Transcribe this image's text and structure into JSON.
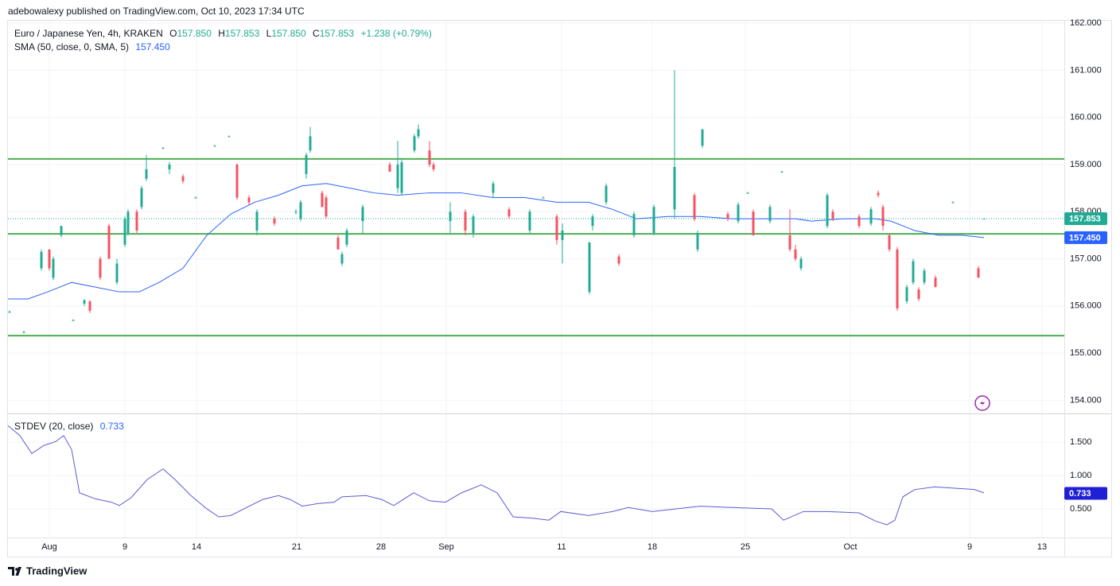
{
  "header": {
    "published": "adebowalexy published on TradingView.com, Oct 10, 2023 17:34 UTC"
  },
  "footer": "TradingView",
  "chart_data": {
    "type": "candlestick",
    "legend": {
      "title": "Euro / Japanese Yen, 4h, KRAKEN",
      "ohlc": [
        {
          "key": "O",
          "value": "157.850"
        },
        {
          "key": "H",
          "value": "157.853"
        },
        {
          "key": "L",
          "value": "157.850"
        },
        {
          "key": "C",
          "value": "157.853"
        }
      ],
      "change": "+1.238 (+0.79%)",
      "sma_name": "SMA (50, close, 0, SMA, 5)",
      "stdev_name": "STDEV (20, close)"
    },
    "up_color": "#22ab94",
    "down_color": "#f7525f",
    "grid": true,
    "xlim": [
      0,
      1328
    ],
    "xticks": [
      {
        "value": 52,
        "label": "Aug"
      },
      {
        "value": 147,
        "label": "9"
      },
      {
        "value": 237,
        "label": "14"
      },
      {
        "value": 363,
        "label": "21"
      },
      {
        "value": 469,
        "label": "28"
      },
      {
        "value": 551,
        "label": "Sep"
      },
      {
        "value": 696,
        "label": "11"
      },
      {
        "value": 810,
        "label": "18"
      },
      {
        "value": 927,
        "label": "25"
      },
      {
        "value": 1059,
        "label": "Oct"
      },
      {
        "value": 1209,
        "label": "9"
      },
      {
        "value": 1300,
        "label": "13"
      }
    ],
    "ylim": [
      153.72,
      162.07
    ],
    "yticks": [
      {
        "value": 162,
        "label": "162.000"
      },
      {
        "value": 161,
        "label": "161.000"
      },
      {
        "value": 160,
        "label": "160.000"
      },
      {
        "value": 159,
        "label": "159.000"
      },
      {
        "value": 158,
        "label": "158.000"
      },
      {
        "value": 157,
        "label": "157.000"
      },
      {
        "value": 156,
        "label": "156.000"
      },
      {
        "value": 155,
        "label": "155.000"
      },
      {
        "value": 154,
        "label": "154.000"
      }
    ],
    "y2lim": [
      0.07,
      1.92
    ],
    "y2ticks": [
      {
        "value": 1.5,
        "label": "1.500"
      },
      {
        "value": 1.0,
        "label": "1.000"
      },
      {
        "value": 0.5,
        "label": "0.500"
      }
    ],
    "x": [
      2,
      20,
      42,
      52,
      57,
      67,
      82,
      96,
      103,
      116,
      127,
      137,
      147,
      151,
      162,
      168,
      174,
      195,
      203,
      220,
      236,
      260,
      278,
      288,
      303,
      313,
      335,
      362,
      368,
      375,
      380,
      395,
      400,
      415,
      420,
      426,
      446,
      480,
      490,
      495,
      511,
      516,
      530,
      535,
      556,
      575,
      585,
      610,
      630,
      656,
      673,
      690,
      697,
      731,
      735,
      752,
      768,
      787,
      812,
      838,
      863,
      867,
      873,
      905,
      918,
      930,
      937,
      958,
      973,
      983,
      990,
      997,
      1030,
      1037,
      1070,
      1085,
      1094,
      1100,
      1108,
      1118,
      1130,
      1138,
      1145,
      1152,
      1166,
      1188,
      1220,
      1227
    ],
    "open": [
      155.88,
      155.45,
      156.8,
      157.2,
      156.6,
      157.5,
      155.7,
      156.05,
      156.1,
      157.0,
      157.7,
      156.5,
      157.3,
      157.55,
      158.0,
      158.1,
      158.7,
      159.35,
      158.9,
      158.75,
      158.3,
      159.4,
      159.6,
      159.0,
      158.3,
      157.6,
      157.85,
      158.0,
      157.85,
      158.8,
      159.3,
      158.4,
      158.3,
      157.45,
      156.9,
      157.3,
      157.8,
      159.0,
      158.5,
      158.4,
      159.3,
      159.6,
      159.3,
      159.0,
      157.8,
      158.0,
      157.55,
      158.4,
      158.05,
      157.6,
      158.3,
      157.9,
      157.4,
      156.3,
      157.7,
      158.2,
      157.05,
      157.5,
      157.55,
      158.05,
      158.35,
      157.2,
      159.4,
      157.95,
      157.8,
      158.4,
      158.0,
      157.8,
      158.85,
      157.5,
      157.2,
      156.8,
      157.7,
      158.0,
      157.9,
      157.75,
      158.4,
      158.1,
      157.5,
      157.2,
      156.1,
      156.5,
      156.35,
      156.5,
      156.6,
      158.2,
      156.8,
      157.85
    ],
    "high": [
      155.9,
      155.47,
      157.2,
      157.2,
      157.05,
      157.7,
      155.72,
      156.15,
      156.12,
      157.05,
      157.75,
      157.0,
      157.9,
      158.05,
      158.05,
      158.55,
      159.2,
      159.37,
      159.05,
      158.8,
      158.32,
      159.42,
      159.62,
      159.02,
      158.35,
      158.05,
      157.9,
      158.05,
      158.25,
      159.25,
      159.8,
      158.45,
      158.35,
      157.5,
      157.15,
      157.65,
      158.15,
      159.05,
      159.5,
      159.1,
      159.65,
      159.85,
      159.5,
      159.05,
      158.2,
      158.05,
      157.95,
      158.65,
      158.1,
      158.05,
      158.32,
      157.95,
      157.75,
      157.35,
      157.95,
      158.6,
      157.1,
      158.0,
      158.15,
      161.0,
      158.4,
      157.6,
      159.75,
      158.0,
      158.2,
      158.42,
      158.05,
      158.15,
      158.87,
      158.05,
      157.3,
      157.05,
      158.4,
      158.05,
      157.95,
      158.1,
      158.45,
      158.15,
      157.55,
      157.25,
      156.45,
      157.0,
      156.4,
      156.8,
      156.65,
      158.22,
      156.85,
      157.853
    ],
    "low": [
      155.85,
      155.42,
      156.75,
      156.75,
      156.55,
      157.45,
      155.68,
      156.0,
      155.85,
      156.55,
      157.0,
      156.45,
      157.25,
      157.5,
      157.55,
      158.05,
      158.65,
      159.33,
      158.8,
      158.6,
      158.28,
      159.38,
      159.58,
      158.25,
      158.15,
      157.5,
      157.7,
      157.95,
      157.8,
      158.7,
      159.25,
      158.1,
      157.85,
      157.2,
      156.85,
      157.25,
      157.55,
      158.85,
      158.4,
      158.35,
      159.25,
      159.55,
      158.95,
      158.85,
      157.55,
      157.5,
      157.45,
      158.3,
      157.85,
      157.55,
      158.28,
      157.3,
      156.9,
      156.25,
      157.6,
      158.15,
      156.85,
      157.45,
      157.5,
      157.85,
      157.8,
      157.15,
      159.35,
      157.8,
      157.75,
      158.38,
      157.5,
      157.75,
      158.83,
      157.15,
      156.95,
      156.75,
      157.65,
      157.8,
      157.65,
      157.7,
      158.3,
      157.6,
      157.15,
      155.9,
      156.05,
      156.45,
      156.1,
      156.45,
      156.4,
      158.18,
      156.6,
      157.85
    ],
    "close": [
      155.88,
      155.45,
      157.15,
      156.8,
      157.0,
      157.7,
      155.7,
      156.12,
      155.9,
      156.6,
      157.0,
      156.9,
      157.85,
      158.0,
      157.6,
      158.5,
      158.9,
      159.35,
      159.0,
      158.65,
      158.3,
      159.4,
      159.6,
      158.3,
      158.2,
      158.0,
      157.75,
      158.0,
      158.2,
      159.2,
      159.6,
      158.1,
      157.9,
      157.2,
      157.1,
      157.6,
      158.1,
      158.85,
      159.0,
      159.05,
      159.6,
      159.75,
      159.0,
      158.9,
      158.0,
      157.6,
      157.9,
      158.6,
      157.9,
      158.0,
      158.3,
      157.4,
      157.6,
      157.35,
      157.9,
      158.55,
      156.9,
      157.95,
      158.1,
      158.95,
      157.85,
      157.55,
      159.75,
      157.85,
      158.15,
      158.4,
      157.5,
      158.1,
      158.85,
      157.2,
      157.0,
      157.0,
      158.35,
      157.85,
      157.7,
      158.05,
      158.35,
      157.7,
      157.2,
      155.95,
      156.4,
      156.95,
      156.15,
      156.75,
      156.4,
      158.2,
      156.6,
      157.853
    ],
    "levels": [
      159.12,
      157.53,
      155.37
    ],
    "level_color": "#4caf50",
    "sma": {
      "color": "#2962ff",
      "x": [
        0,
        25,
        50,
        80,
        110,
        140,
        165,
        190,
        220,
        250,
        280,
        310,
        340,
        370,
        400,
        430,
        460,
        490,
        530,
        570,
        610,
        650,
        690,
        730,
        760,
        790,
        830,
        870,
        910,
        950,
        990,
        1010,
        1050,
        1090,
        1110,
        1140,
        1170,
        1200,
        1227
      ],
      "values": [
        156.15,
        156.15,
        156.3,
        156.5,
        156.4,
        156.3,
        156.3,
        156.5,
        156.8,
        157.5,
        157.95,
        158.2,
        158.35,
        158.55,
        158.6,
        158.5,
        158.4,
        158.35,
        158.4,
        158.4,
        158.3,
        158.3,
        158.2,
        158.2,
        158.05,
        157.85,
        157.9,
        157.9,
        157.85,
        157.85,
        157.85,
        157.8,
        157.85,
        157.85,
        157.8,
        157.6,
        157.5,
        157.5,
        157.45
      ]
    },
    "stdev": {
      "color": "#5b5bd6",
      "axis": "y2",
      "x": [
        0,
        15,
        30,
        45,
        60,
        70,
        80,
        90,
        110,
        130,
        140,
        155,
        175,
        195,
        210,
        230,
        250,
        265,
        280,
        300,
        320,
        340,
        355,
        370,
        390,
        410,
        420,
        450,
        470,
        485,
        510,
        530,
        550,
        570,
        595,
        615,
        635,
        660,
        680,
        695,
        730,
        760,
        780,
        810,
        840,
        870,
        910,
        960,
        975,
        1000,
        1030,
        1070,
        1090,
        1105,
        1115,
        1125,
        1140,
        1165,
        1190,
        1215,
        1227
      ],
      "values": [
        1.75,
        1.6,
        1.33,
        1.45,
        1.51,
        1.6,
        1.39,
        0.74,
        0.65,
        0.6,
        0.55,
        0.67,
        0.94,
        1.1,
        0.94,
        0.7,
        0.5,
        0.38,
        0.4,
        0.52,
        0.64,
        0.7,
        0.64,
        0.54,
        0.58,
        0.6,
        0.68,
        0.7,
        0.64,
        0.55,
        0.74,
        0.62,
        0.6,
        0.74,
        0.86,
        0.74,
        0.38,
        0.36,
        0.33,
        0.46,
        0.4,
        0.46,
        0.52,
        0.46,
        0.5,
        0.54,
        0.52,
        0.5,
        0.33,
        0.46,
        0.46,
        0.44,
        0.32,
        0.26,
        0.33,
        0.68,
        0.79,
        0.83,
        0.81,
        0.79,
        0.74
      ]
    },
    "price_marker": {
      "value": 157.853,
      "label": "157.853"
    },
    "sma_marker": {
      "value": 157.45,
      "label": "157.450"
    },
    "stdev_marker": {
      "value": 0.733,
      "label": "0.733"
    }
  }
}
